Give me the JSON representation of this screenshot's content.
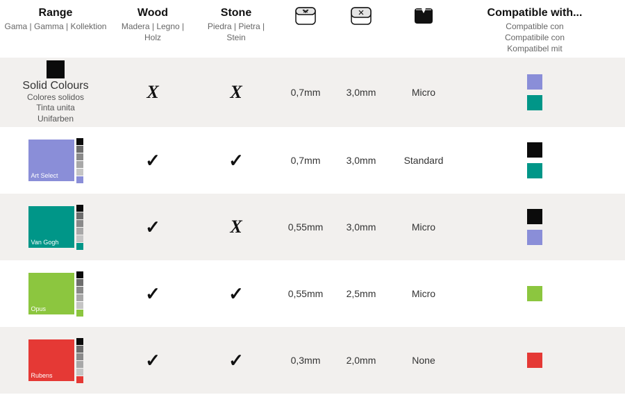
{
  "colors": {
    "bg_alt": "#f2f0ee",
    "text": "#333333",
    "muted": "#666666",
    "black": "#0b0b0b",
    "purple": "#8a8ed8",
    "teal": "#009688",
    "green": "#8cc63f",
    "red": "#e53935",
    "grey1": "#6d6d6d",
    "grey2": "#8a8a8a",
    "grey3": "#a8a8a8",
    "grey4": "#c5c5c5"
  },
  "header": {
    "range": {
      "title": "Range",
      "sub": "Gama | Gamma | Kollektion"
    },
    "wood": {
      "title": "Wood",
      "sub": "Madera | Legno | Holz"
    },
    "stone": {
      "title": "Stone",
      "sub": "Piedra | Pietra | Stein"
    },
    "compat": {
      "title": "Compatible with...",
      "sub": "Compatible con\nCompatibile con\nKompatibel mit"
    }
  },
  "rows": [
    {
      "id": "solid-colours",
      "range": {
        "type": "solid",
        "swatch": "#0b0b0b",
        "title": "Solid Colours",
        "subs": [
          "Colores solidos",
          "Tinta unita",
          "Unifarben"
        ]
      },
      "wood": "✗",
      "stone": "✗",
      "t1": "0,7mm",
      "t2": "3,0mm",
      "t3": "Micro",
      "compat": [
        "#8a8ed8",
        "#009688"
      ]
    },
    {
      "id": "art-select",
      "range": {
        "type": "card",
        "color": "#8a8ed8",
        "label": "Art Select"
      },
      "wood": "✓",
      "stone": "✓",
      "t1": "0,7mm",
      "t2": "3,0mm",
      "t3": "Standard",
      "compat": [
        "#0b0b0b",
        "#009688"
      ]
    },
    {
      "id": "van-gogh",
      "range": {
        "type": "card",
        "color": "#009688",
        "label": "Van Gogh"
      },
      "wood": "✓",
      "stone": "✗",
      "t1": "0,55mm",
      "t2": "3,0mm",
      "t3": "Micro",
      "compat": [
        "#0b0b0b",
        "#8a8ed8"
      ]
    },
    {
      "id": "opus",
      "range": {
        "type": "card",
        "color": "#8cc63f",
        "label": "Opus"
      },
      "wood": "✓",
      "stone": "✓",
      "t1": "0,55mm",
      "t2": "2,5mm",
      "t3": "Micro",
      "compat": [
        "#8cc63f"
      ]
    },
    {
      "id": "rubens",
      "range": {
        "type": "card",
        "color": "#e53935",
        "label": "Rubens"
      },
      "wood": "✓",
      "stone": "✓",
      "t1": "0,3mm",
      "t2": "2,0mm",
      "t3": "None",
      "compat": [
        "#e53935"
      ]
    }
  ]
}
